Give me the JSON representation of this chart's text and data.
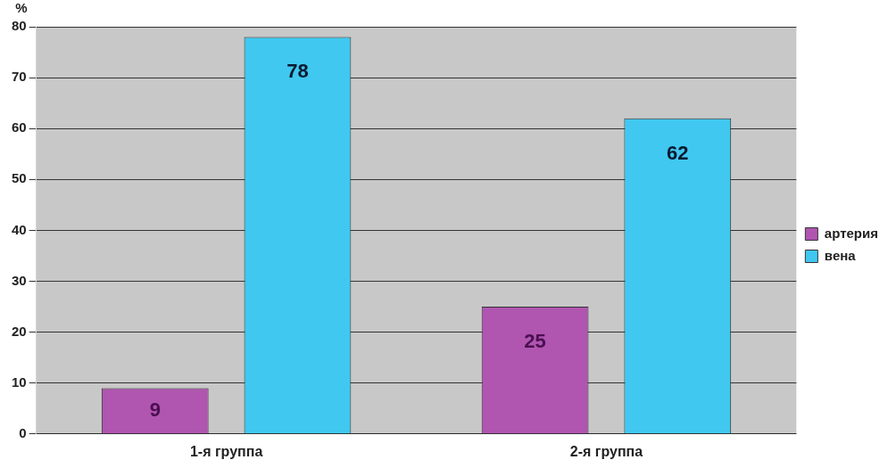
{
  "chart_data": {
    "type": "bar",
    "ylabel": "%",
    "categories": [
      "1-я группа",
      "2-я группа"
    ],
    "series": [
      {
        "name": "артерия",
        "color": "#b055b0",
        "values": [
          9,
          25
        ]
      },
      {
        "name": "вена",
        "color": "#40c8f0",
        "values": [
          78,
          62
        ]
      }
    ],
    "ylim": [
      0,
      80
    ],
    "yticks": [
      0,
      10,
      20,
      30,
      40,
      50,
      60,
      70,
      80
    ],
    "grid": "y",
    "legend": "right",
    "data_labels": true
  }
}
